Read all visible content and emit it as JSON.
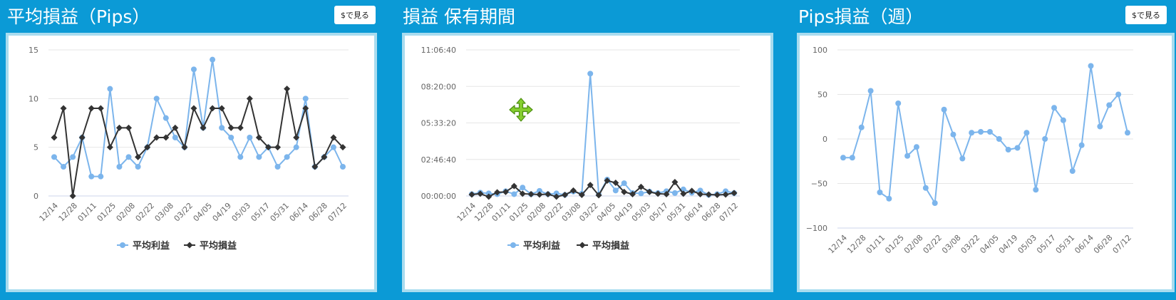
{
  "panels": [
    {
      "title": "平均損益（Pips）",
      "button": "$で見る",
      "chart_data": {
        "type": "line",
        "yticks": [
          "0",
          "5",
          "10",
          "15"
        ],
        "ylim": [
          0,
          15
        ],
        "xtick_labels": [
          "12/14",
          "12/28",
          "01/11",
          "01/25",
          "02/08",
          "02/22",
          "03/08",
          "03/22",
          "04/05",
          "04/19",
          "05/03",
          "05/17",
          "05/31",
          "06/14",
          "06/28",
          "07/12"
        ],
        "legend": "bottom",
        "series": [
          {
            "name": "平均利益",
            "color": "#7cb5ec",
            "marker": "circle",
            "values": [
              4,
              3,
              4,
              6,
              2,
              2,
              11,
              3,
              4,
              3,
              5,
              10,
              8,
              6,
              5,
              13,
              7,
              14,
              7,
              6,
              4,
              6,
              4,
              5,
              3,
              4,
              5,
              10,
              3,
              4,
              5,
              3
            ]
          },
          {
            "name": "平均損益",
            "color": "#333333",
            "marker": "diamond",
            "values": [
              6,
              9,
              0,
              6,
              9,
              9,
              5,
              7,
              7,
              4,
              5,
              6,
              6,
              7,
              5,
              9,
              7,
              9,
              9,
              7,
              7,
              10,
              6,
              5,
              5,
              11,
              6,
              9,
              3,
              4,
              6,
              5
            ]
          }
        ]
      }
    },
    {
      "title": "損益 保有期間",
      "button": "",
      "chart_data": {
        "type": "line",
        "yticks": [
          "00:00:00",
          "02:46:40",
          "05:33:20",
          "08:20:00",
          "11:06:40"
        ],
        "ylim": [
          0,
          40000
        ],
        "xtick_labels": [
          "12/14",
          "12/28",
          "01/11",
          "01/25",
          "02/08",
          "02/22",
          "03/08",
          "03/22",
          "04/05",
          "04/19",
          "05/03",
          "05/17",
          "05/31",
          "06/14",
          "06/28",
          "07/12"
        ],
        "legend": "bottom",
        "series": [
          {
            "name": "平均利益",
            "color": "#7cb5ec",
            "marker": "circle",
            "values": [
              500,
              900,
              700,
              500,
              1300,
              500,
              2300,
              500,
              1400,
              500,
              700,
              300,
              1200,
              600,
              33500,
              400,
              4500,
              1500,
              3500,
              800,
              700,
              1200,
              800,
              1300,
              800,
              1800,
              900,
              1500,
              300,
              500,
              1300,
              800
            ]
          },
          {
            "name": "平均損益",
            "color": "#333333",
            "marker": "diamond",
            "values": [
              400,
              600,
              -200,
              1000,
              1100,
              2700,
              600,
              500,
              400,
              500,
              -200,
              300,
              1500,
              300,
              3000,
              200,
              4200,
              3600,
              1100,
              500,
              2500,
              1100,
              600,
              500,
              3800,
              600,
              1400,
              500,
              400,
              300,
              400,
              800
            ]
          }
        ]
      }
    },
    {
      "title": "Pips損益（週）",
      "button": "$で見る",
      "chart_data": {
        "type": "line",
        "yticks": [
          "−100",
          "−50",
          "0",
          "50",
          "100"
        ],
        "ylim": [
          -100,
          100
        ],
        "xtick_labels": [
          "12/14",
          "12/28",
          "01/11",
          "01/25",
          "02/08",
          "02/22",
          "03/08",
          "03/22",
          "04/05",
          "04/19",
          "05/03",
          "05/17",
          "05/31",
          "06/14",
          "06/28",
          "07/12"
        ],
        "series": [
          {
            "color": "#7cb5ec",
            "marker": "circle",
            "values": [
              -21,
              -21,
              13,
              54,
              -60,
              -67,
              40,
              -19,
              -9,
              -55,
              -72,
              33,
              5,
              -22,
              7,
              8,
              8,
              0,
              -12,
              -10,
              7,
              -57,
              0,
              35,
              21,
              -36,
              -7,
              82,
              14,
              38,
              50,
              7
            ]
          }
        ]
      }
    }
  ]
}
